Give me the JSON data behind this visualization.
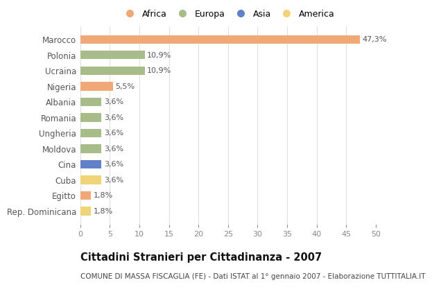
{
  "categories": [
    "Marocco",
    "Polonia",
    "Ucraina",
    "Nigeria",
    "Albania",
    "Romania",
    "Ungheria",
    "Moldova",
    "Cina",
    "Cuba",
    "Egitto",
    "Rep. Dominicana"
  ],
  "values": [
    47.3,
    10.9,
    10.9,
    5.5,
    3.6,
    3.6,
    3.6,
    3.6,
    3.6,
    3.6,
    1.8,
    1.8
  ],
  "labels": [
    "47,3%",
    "10,9%",
    "10,9%",
    "5,5%",
    "3,6%",
    "3,6%",
    "3,6%",
    "3,6%",
    "3,6%",
    "3,6%",
    "1,8%",
    "1,8%"
  ],
  "continents": [
    "Africa",
    "Europa",
    "Europa",
    "Africa",
    "Europa",
    "Europa",
    "Europa",
    "Europa",
    "Asia",
    "America",
    "Africa",
    "America"
  ],
  "colors": {
    "Africa": "#F0A878",
    "Europa": "#A8BC8A",
    "Asia": "#6080C8",
    "America": "#F0D478"
  },
  "legend_order": [
    "Africa",
    "Europa",
    "Asia",
    "America"
  ],
  "xlim": [
    0,
    50
  ],
  "xticks": [
    0,
    5,
    10,
    15,
    20,
    25,
    30,
    35,
    40,
    45,
    50
  ],
  "title": "Cittadini Stranieri per Cittadinanza - 2007",
  "subtitle": "COMUNE DI MASSA FISCAGLIA (FE) - Dati ISTAT al 1° gennaio 2007 - Elaborazione TUTTITALIA.IT",
  "background_color": "#ffffff",
  "grid_color": "#e0e0e0",
  "bar_height": 0.55,
  "label_fontsize": 8,
  "ytick_fontsize": 8.5,
  "xtick_fontsize": 8,
  "title_fontsize": 10.5,
  "subtitle_fontsize": 7.5
}
